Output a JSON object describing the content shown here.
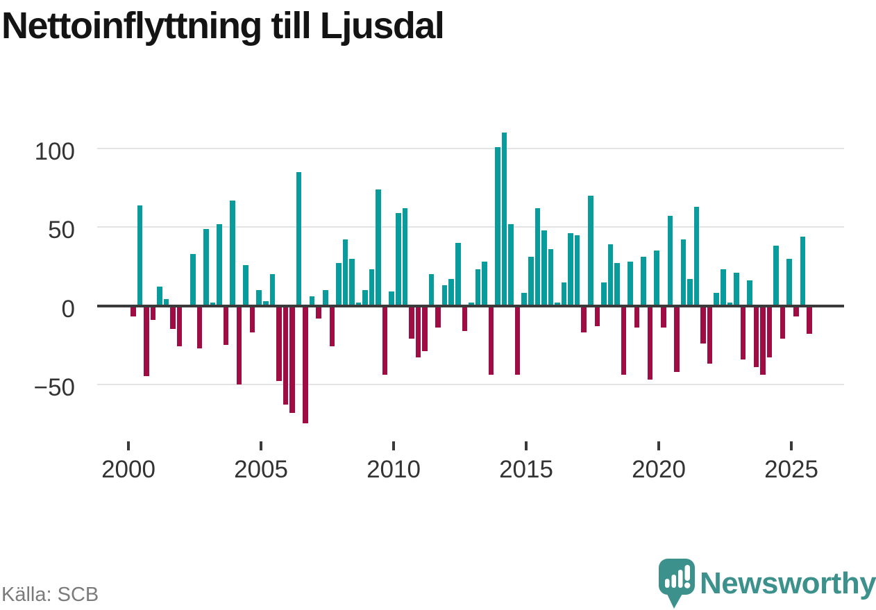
{
  "title": "Nettoinflyttning till Ljusdal",
  "source": "Källa: SCB",
  "logo": {
    "text": "Newsworthy"
  },
  "colors": {
    "positive": "#089c9c",
    "negative": "#a00d45",
    "axis": "#3a3a3a",
    "grid": "#e3e3e3",
    "title": "#141414",
    "tick_text": "#333333",
    "source_text": "#7b7b7b",
    "logo": "#3d918c"
  },
  "chart_data": {
    "type": "bar",
    "title": "Nettoinflyttning till Ljusdal",
    "frequency": "quarterly",
    "x_start_year": 2000,
    "x_start_quarter": 1,
    "x_tick_labels": [
      "2000",
      "2005",
      "2010",
      "2015",
      "2020",
      "2025"
    ],
    "y_tick_labels": [
      "100",
      "50",
      "0",
      "−50"
    ],
    "y_ticks": [
      100,
      50,
      0,
      -50
    ],
    "ylim": [
      -80,
      115
    ],
    "grid": true,
    "legend": false,
    "series": [
      {
        "name": "Nettoinflyttning",
        "values": [
          -7,
          64,
          -45,
          -9,
          12,
          4,
          -15,
          -26,
          0,
          33,
          -27,
          49,
          2,
          52,
          -25,
          67,
          -50,
          26,
          -17,
          10,
          3,
          20,
          -48,
          -63,
          -68,
          85,
          -75,
          6,
          -8,
          10,
          -26,
          27,
          42,
          30,
          2,
          10,
          23,
          74,
          -44,
          9,
          59,
          62,
          -21,
          -33,
          -29,
          20,
          -14,
          13,
          17,
          40,
          -16,
          2,
          23,
          28,
          -44,
          101,
          110,
          52,
          -44,
          8,
          31,
          62,
          48,
          36,
          2,
          15,
          46,
          45,
          -17,
          70,
          -13,
          15,
          39,
          27,
          -44,
          28,
          -14,
          31,
          -47,
          35,
          -14,
          57,
          -42,
          42,
          17,
          63,
          -24,
          -37,
          8,
          23,
          2,
          21,
          -34,
          16,
          -39,
          -44,
          -33,
          38,
          -21,
          30,
          -7,
          44,
          -18
        ]
      }
    ]
  }
}
